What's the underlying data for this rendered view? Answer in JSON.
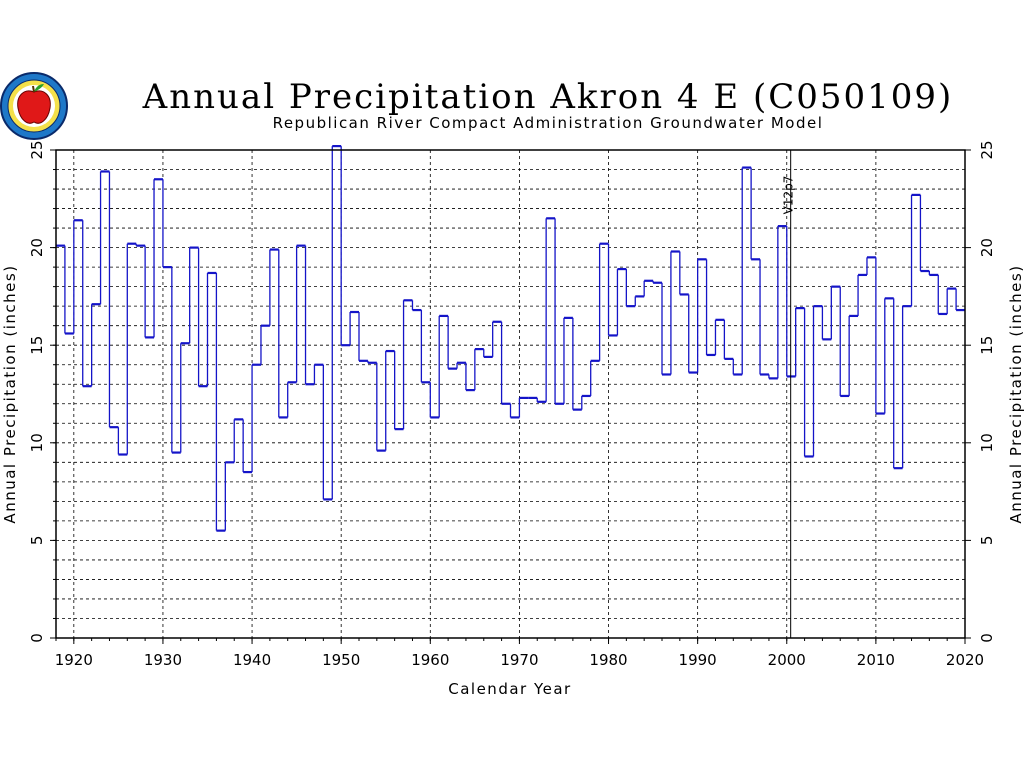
{
  "chart_data": {
    "type": "line",
    "step": true,
    "title": "Annual Precipitation Akron 4 E (C050109)",
    "subtitle": "Republican River Compact Administration Groundwater Model",
    "xlabel": "Calendar Year",
    "ylabel": "Annual Precipitation (inches)",
    "xlim": [
      1918,
      2020
    ],
    "ylim": [
      0,
      25
    ],
    "x_ticks": [
      "1920",
      "1930",
      "1940",
      "1950",
      "1960",
      "1970",
      "1980",
      "1990",
      "2000",
      "2010",
      "2020"
    ],
    "y_ticks": [
      "0",
      "5",
      "10",
      "15",
      "20",
      "25"
    ],
    "grid": true,
    "series_color": "#1414c8",
    "annotation": {
      "label": "V12p7",
      "x": 2001
    },
    "x": [
      1918,
      1919,
      1920,
      1921,
      1922,
      1923,
      1924,
      1925,
      1926,
      1927,
      1928,
      1929,
      1930,
      1931,
      1932,
      1933,
      1934,
      1935,
      1936,
      1937,
      1938,
      1939,
      1940,
      1941,
      1942,
      1943,
      1944,
      1945,
      1946,
      1947,
      1948,
      1949,
      1950,
      1951,
      1952,
      1953,
      1954,
      1955,
      1956,
      1957,
      1958,
      1959,
      1960,
      1961,
      1962,
      1963,
      1964,
      1965,
      1966,
      1967,
      1968,
      1969,
      1970,
      1971,
      1972,
      1973,
      1974,
      1975,
      1976,
      1977,
      1978,
      1979,
      1980,
      1981,
      1982,
      1983,
      1984,
      1985,
      1986,
      1987,
      1988,
      1989,
      1990,
      1991,
      1992,
      1993,
      1994,
      1995,
      1996,
      1997,
      1998,
      1999,
      2000,
      2001,
      2002,
      2003,
      2004,
      2005,
      2006,
      2007,
      2008,
      2009,
      2010,
      2011,
      2012,
      2013,
      2014,
      2015,
      2016,
      2017,
      2018,
      2019
    ],
    "values": [
      20.1,
      15.6,
      21.4,
      12.9,
      17.1,
      23.9,
      10.8,
      9.4,
      20.2,
      20.1,
      15.4,
      23.5,
      19.0,
      9.5,
      15.1,
      20.0,
      12.9,
      18.7,
      5.5,
      9.0,
      11.2,
      8.5,
      14.0,
      16.0,
      19.9,
      11.3,
      13.1,
      20.1,
      13.0,
      14.0,
      7.1,
      25.2,
      15.0,
      16.7,
      14.2,
      14.1,
      9.6,
      14.7,
      10.7,
      17.3,
      16.8,
      13.1,
      11.3,
      16.5,
      13.8,
      14.1,
      12.7,
      14.8,
      14.4,
      16.2,
      12.0,
      11.3,
      12.3,
      12.3,
      12.1,
      21.5,
      12.0,
      16.4,
      11.7,
      12.4,
      14.2,
      20.2,
      15.5,
      18.9,
      17.0,
      17.5,
      18.3,
      18.2,
      13.5,
      19.8,
      17.6,
      13.6,
      19.4,
      14.5,
      16.3,
      14.3,
      13.5,
      24.1,
      19.4,
      13.5,
      13.3,
      21.1,
      13.4,
      16.9,
      9.3,
      17.0,
      15.3,
      18.0,
      12.4,
      16.5,
      18.6,
      19.5,
      11.5,
      17.4,
      8.7,
      17.0,
      22.7,
      18.8,
      18.6,
      16.6,
      17.9,
      16.8
    ]
  }
}
